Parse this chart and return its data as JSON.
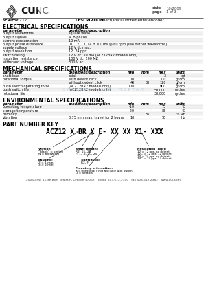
{
  "date": "10/2009",
  "page": "1 of 3",
  "series": "ACZ12",
  "description": "mechanical incremental encoder",
  "elec_section": "ELECTRICAL SPECIFICATIONS",
  "elec_headers": [
    "parameter",
    "conditions/description"
  ],
  "elec_rows": [
    [
      "output waveforms",
      "square wave"
    ],
    [
      "output signals",
      "A, B phase"
    ],
    [
      "current consumption",
      "10 mA"
    ],
    [
      "output phase difference",
      "T1, T2, T3, T4 ± 0.1 ms @ 60 rpm (see output waveforms)"
    ],
    [
      "supply voltage",
      "12 V dc max."
    ],
    [
      "output resolution",
      "12, 24 ppr"
    ],
    [
      "switch rating",
      "12 V dc, 50 mA (ACZ12BR2 models only)"
    ],
    [
      "insulation resistance",
      "100 V dc, 100 MΩ"
    ],
    [
      "withstand voltage",
      "300 V ac"
    ]
  ],
  "mech_section": "MECHANICAL SPECIFICATIONS",
  "mech_headers": [
    "parameter",
    "conditions/description",
    "min",
    "nom",
    "max",
    "units"
  ],
  "mech_rows": [
    [
      "shaft load",
      "axial",
      "",
      "",
      "3",
      "kgf"
    ],
    [
      "rotational torque",
      "with detent click",
      "10",
      "",
      "100",
      "gf·cm"
    ],
    [
      "",
      "without detent click",
      "40",
      "80",
      "120",
      "gf·cm"
    ],
    [
      "push switch operating force",
      "(ACZ12BR2 models only)",
      "100",
      "",
      "900",
      "gf·cm"
    ],
    [
      "push switch life",
      "(ACZ12BR2 models only)",
      "",
      "",
      "50,000",
      "cycles"
    ],
    [
      "rotational life",
      "",
      "",
      "",
      "30,000",
      "cycles"
    ]
  ],
  "env_section": "ENVIRONMENTAL SPECIFICATIONS",
  "env_headers": [
    "parameter",
    "conditions/description",
    "min",
    "nom",
    "max",
    "units"
  ],
  "env_rows": [
    [
      "operating temperature",
      "",
      "-10",
      "",
      "75",
      "°C"
    ],
    [
      "storage temperature",
      "",
      "-20",
      "",
      "85",
      "°C"
    ],
    [
      "humidity",
      "",
      "",
      "85",
      "",
      "% RH"
    ],
    [
      "vibration",
      "0.75 mm max. travel for 2 hours",
      "10",
      "",
      "55",
      "Hz"
    ]
  ],
  "pnk_section": "PART NUMBER KEY",
  "pnk_model": "ACZ12 X BR X E- XX XX X1- XXX",
  "footer": "20050 SW 112th Ave. Tualatin, Oregon 97062   phone 503.612.2300   fax 503.612.2382   www.cui.com",
  "bg_color": "#ffffff",
  "alt_row_color": "#f0f0f0",
  "watermark_color": "#b8cede"
}
